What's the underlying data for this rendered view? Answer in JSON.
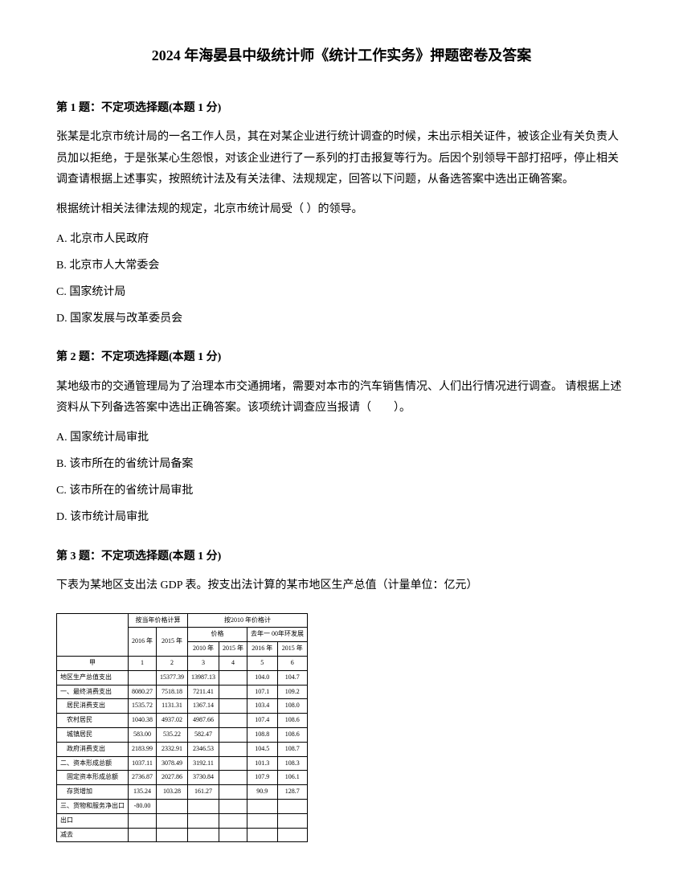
{
  "title": "2024 年海晏县中级统计师《统计工作实务》押题密卷及答案",
  "q1": {
    "header": "第 1 题：不定项选择题(本题 1 分)",
    "body1": "张某是北京市统计局的一名工作人员，其在对某企业进行统计调查的时候，未出示相关证件，被该企业有关负责人员加以拒绝，于是张某心生怨恨，对该企业进行了一系列的打击报复等行为。后因个别领导干部打招呼，停止相关调查请根据上述事实，按照统计法及有关法律、法规规定，回答以下问题，从备选答案中选出正确答案。",
    "body2": "根据统计相关法律法规的规定，北京市统计局受（ ）的领导。",
    "optA": "A. 北京市人民政府",
    "optB": "B. 北京市人大常委会",
    "optC": "C. 国家统计局",
    "optD": "D. 国家发展与改革委员会"
  },
  "q2": {
    "header": "第 2 题：不定项选择题(本题 1 分)",
    "body": "某地级市的交通管理局为了治理本市交通拥堵，需要对本市的汽车销售情况、人们出行情况进行调查。 请根据上述资料从下列备选答案中选出正确答案。该项统计调查应当报请（　　）。",
    "optA": "A. 国家统计局审批",
    "optB": "B. 该市所在的省统计局备案",
    "optC": "C. 该市所在的省统计局审批",
    "optD": "D. 该市统计局审批"
  },
  "q3": {
    "header": "第 3 题：不定项选择题(本题 1 分)",
    "body": "下表为某地区支出法 GDP 表。按支出法计算的某市地区生产总值（计量单位：亿元）"
  },
  "table": {
    "header_row1_col1": "",
    "header_row1_col2": "按当年价格计算",
    "header_row1_col3": "按2010 年价格计",
    "header_row2_col1": "2016 年",
    "header_row2_col2": "2015 年",
    "header_row2_col3": "价格",
    "header_row2_col4": "去年一 00年环发展",
    "header_row3_col1": "2010 年",
    "header_row3_col2": "2015 年",
    "header_row3_col3": "2016 年",
    "header_row3_col4": "2015 年",
    "header_row4": "甲",
    "header_row4_1": "1",
    "header_row4_2": "2",
    "header_row4_3": "3",
    "header_row4_4": "4",
    "header_row4_5": "5",
    "header_row4_6": "6",
    "rows": [
      {
        "label": "地区生产总值支出",
        "c1": "",
        "c2": "15377.39",
        "c3": "13987.13",
        "c4": "",
        "c5": "104.0",
        "c6": "104.7"
      },
      {
        "label": "一、最终消费支出",
        "c1": "8080.27",
        "c2": "7518.18",
        "c3": "7211.41",
        "c4": "",
        "c5": "107.1",
        "c6": "109.2"
      },
      {
        "label": "　居民消费支出",
        "c1": "1535.72",
        "c2": "1131.31",
        "c3": "1367.14",
        "c4": "",
        "c5": "103.4",
        "c6": "108.0"
      },
      {
        "label": "　农村居民",
        "c1": "1040.38",
        "c2": "4937.02",
        "c3": "4987.66",
        "c4": "",
        "c5": "107.4",
        "c6": "108.6"
      },
      {
        "label": "　城镇居民",
        "c1": "583.00",
        "c2": "535.22",
        "c3": "582.47",
        "c4": "",
        "c5": "108.8",
        "c6": "108.6"
      },
      {
        "label": "　政府消费支出",
        "c1": "2183.99",
        "c2": "2332.91",
        "c3": "2346.53",
        "c4": "",
        "c5": "104.5",
        "c6": "108.7"
      },
      {
        "label": "二、资本形成总额",
        "c1": "1037.11",
        "c2": "3078.49",
        "c3": "3192.11",
        "c4": "",
        "c5": "101.3",
        "c6": "108.3"
      },
      {
        "label": "　固定资本形成总额",
        "c1": "2736.87",
        "c2": "2027.86",
        "c3": "3730.84",
        "c4": "",
        "c5": "107.9",
        "c6": "106.1"
      },
      {
        "label": "　存货增加",
        "c1": "135.24",
        "c2": "103.28",
        "c3": "161.27",
        "c4": "",
        "c5": "90.9",
        "c6": "128.7"
      },
      {
        "label": "三、货物和服务净出口",
        "c1": "-80.00",
        "c2": "",
        "c3": "",
        "c4": "",
        "c5": "",
        "c6": ""
      },
      {
        "label": "出口",
        "c1": "",
        "c2": "",
        "c3": "",
        "c4": "",
        "c5": "",
        "c6": ""
      },
      {
        "label": "减去",
        "c1": "",
        "c2": "",
        "c3": "",
        "c4": "",
        "c5": "",
        "c6": ""
      }
    ]
  }
}
